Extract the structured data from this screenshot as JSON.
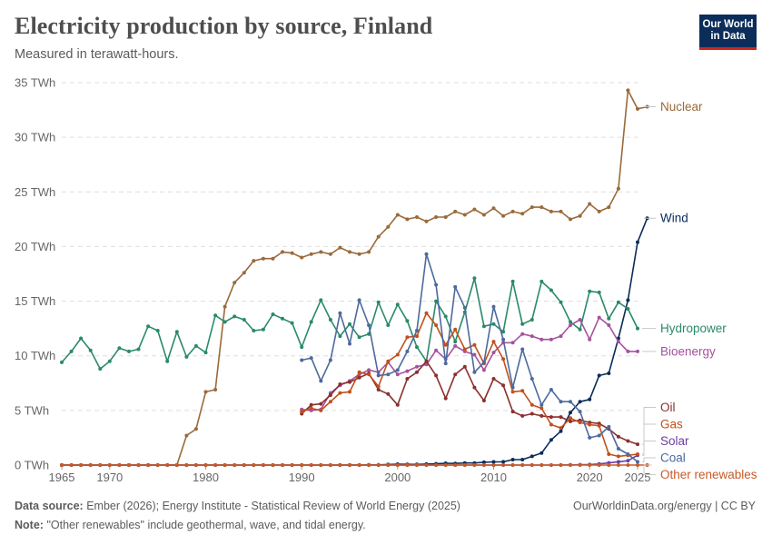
{
  "header": {
    "title": "Electricity production by source, Finland",
    "subtitle": "Measured in terawatt-hours.",
    "logo_line1": "Our World",
    "logo_line2": "in Data"
  },
  "footer": {
    "source_label": "Data source:",
    "source_text": "Ember (2026); Energy Institute - Statistical Review of World Energy (2025)",
    "url_text": "OurWorldinData.org/energy | CC BY",
    "note_label": "Note:",
    "note_text": "\"Other renewables\" include geothermal, wave, and tidal energy."
  },
  "chart_data": {
    "type": "line",
    "ylim": [
      0,
      35
    ],
    "xlim": [
      1965,
      2025
    ],
    "y_ticks": [
      0,
      5,
      10,
      15,
      20,
      25,
      30,
      35
    ],
    "y_tick_labels": [
      "0 TWh",
      "5 TWh",
      "10 TWh",
      "15 TWh",
      "20 TWh",
      "25 TWh",
      "30 TWh",
      "35 TWh"
    ],
    "x_ticks": [
      1965,
      1970,
      1980,
      1990,
      2000,
      2010,
      2020,
      2025
    ],
    "x_tick_labels": [
      "1965",
      "1970",
      "1980",
      "1990",
      "2000",
      "2010",
      "2020",
      "2025"
    ],
    "grid": "horizontal dashed",
    "legend": "right, labels at line ends",
    "series": [
      {
        "name": "Nuclear",
        "color": "#9a6a3a",
        "start": 1965,
        "values": [
          0,
          0,
          0,
          0,
          0,
          0,
          0,
          0,
          0,
          0,
          0,
          0,
          0,
          2.7,
          3.3,
          6.7,
          6.9,
          14.5,
          16.7,
          17.6,
          18.7,
          18.9,
          18.9,
          19.5,
          19.4,
          19.0,
          19.3,
          19.5,
          19.3,
          19.9,
          19.5,
          19.3,
          19.5,
          20.9,
          21.8,
          22.9,
          22.5,
          22.7,
          22.3,
          22.7,
          22.7,
          23.2,
          22.9,
          23.4,
          22.9,
          23.5,
          22.8,
          23.2,
          23.0,
          23.6,
          23.6,
          23.2,
          23.2,
          22.5,
          22.8,
          23.9,
          23.2,
          23.6,
          25.3,
          34.3,
          32.6,
          32.8
        ]
      },
      {
        "name": "Wind",
        "color": "#0b2c5a",
        "start": 1965,
        "values": [
          0,
          0,
          0,
          0,
          0,
          0,
          0,
          0,
          0,
          0,
          0,
          0,
          0,
          0,
          0,
          0,
          0,
          0,
          0,
          0,
          0,
          0,
          0,
          0,
          0,
          0,
          0,
          0,
          0,
          0.01,
          0.01,
          0.01,
          0.02,
          0.02,
          0.05,
          0.08,
          0.07,
          0.06,
          0.09,
          0.12,
          0.17,
          0.15,
          0.19,
          0.19,
          0.26,
          0.29,
          0.3,
          0.5,
          0.5,
          0.8,
          1.1,
          2.3,
          3.1,
          4.8,
          5.8,
          6.0,
          8.2,
          8.4,
          11.6,
          15.1,
          20.4,
          22.6
        ]
      },
      {
        "name": "Hydropower",
        "color": "#2a8a68",
        "start": 1965,
        "values": [
          9.4,
          10.4,
          11.6,
          10.5,
          8.8,
          9.5,
          10.7,
          10.4,
          10.6,
          12.7,
          12.3,
          9.5,
          12.2,
          9.9,
          10.9,
          10.3,
          13.7,
          13.1,
          13.6,
          13.3,
          12.3,
          12.4,
          13.8,
          13.4,
          13.0,
          10.8,
          13.1,
          15.1,
          13.3,
          11.8,
          12.9,
          11.7,
          12.0,
          14.9,
          12.8,
          14.7,
          13.2,
          10.8,
          9.5,
          15.0,
          13.6,
          11.3,
          14.0,
          17.1,
          12.7,
          12.9,
          12.2,
          16.8,
          12.9,
          13.3,
          16.8,
          16.0,
          14.9,
          13.1,
          12.4,
          15.9,
          15.8,
          13.4,
          14.9,
          14.3,
          12.5
        ]
      },
      {
        "name": "Bioenergy",
        "color": "#a6529e",
        "start": 1990,
        "values": [
          5.1,
          5.0,
          5.1,
          6.6,
          7.3,
          7.7,
          8.3,
          8.7,
          8.5,
          9.4,
          8.3,
          8.6,
          9.0,
          9.2,
          10.5,
          9.7,
          10.9,
          10.4,
          10.1,
          8.7,
          10.3,
          11.2,
          11.2,
          12.0,
          11.8,
          11.5,
          11.5,
          11.8,
          12.8,
          13.3,
          11.5,
          13.5,
          12.8,
          11.3,
          10.4,
          10.4
        ]
      },
      {
        "name": "Oil",
        "color": "#8b2f2f",
        "start": 1990,
        "values": [
          4.7,
          5.5,
          5.6,
          6.4,
          7.4,
          7.6,
          8.0,
          8.4,
          6.9,
          6.5,
          5.5,
          7.9,
          8.5,
          9.5,
          8.2,
          6.1,
          8.3,
          9.0,
          7.1,
          5.9,
          7.9,
          7.3,
          4.9,
          4.5,
          4.7,
          4.5,
          4.4,
          4.4,
          4.0,
          4.1,
          3.9,
          3.8,
          3.3,
          2.6,
          2.2,
          1.9
        ]
      },
      {
        "name": "Solar",
        "color": "#6b3fa0",
        "start": 1965,
        "values": [
          0,
          0,
          0,
          0,
          0,
          0,
          0,
          0,
          0,
          0,
          0,
          0,
          0,
          0,
          0,
          0,
          0,
          0,
          0,
          0,
          0,
          0,
          0,
          0,
          0,
          0,
          0,
          0,
          0,
          0,
          0,
          0,
          0,
          0,
          0,
          0,
          0,
          0,
          0,
          0,
          0,
          0,
          0,
          0,
          0,
          0,
          0,
          0,
          0,
          0,
          0,
          0,
          0.01,
          0.02,
          0.03,
          0.05,
          0.1,
          0.2,
          0.3,
          0.4,
          0.9
        ]
      },
      {
        "name": "Gas",
        "color": "#c0501e",
        "start": 1990,
        "values": [
          4.9,
          5.2,
          5.0,
          5.8,
          6.6,
          6.7,
          8.5,
          8.3,
          7.2,
          9.5,
          10.1,
          11.7,
          11.8,
          13.9,
          12.8,
          11.0,
          12.4,
          10.6,
          11.0,
          9.3,
          11.3,
          9.7,
          6.7,
          6.8,
          5.5,
          5.2,
          3.7,
          3.4,
          4.3,
          3.9,
          3.7,
          3.6,
          1.0,
          0.8,
          0.9,
          1.0
        ]
      },
      {
        "name": "Coal",
        "color": "#4c6a9c",
        "start": 1990,
        "values": [
          9.6,
          9.8,
          7.7,
          9.6,
          13.9,
          11.1,
          15.1,
          12.8,
          8.2,
          8.3,
          8.7,
          10.4,
          12.3,
          19.3,
          16.5,
          9.3,
          16.3,
          14.4,
          8.5,
          9.4,
          14.5,
          11.5,
          7.1,
          10.6,
          7.9,
          5.5,
          6.9,
          5.8,
          5.8,
          4.9,
          2.5,
          2.7,
          3.5,
          1.5,
          1.0,
          0.3
        ]
      },
      {
        "name": "Other renewables",
        "color": "#c75a28",
        "start": 1965,
        "values": [
          0,
          0,
          0,
          0,
          0,
          0,
          0,
          0,
          0,
          0,
          0,
          0,
          0,
          0,
          0,
          0,
          0,
          0,
          0,
          0,
          0,
          0,
          0,
          0,
          0,
          0,
          0,
          0,
          0,
          0,
          0,
          0,
          0,
          0,
          0,
          0,
          0,
          0,
          0,
          0,
          0,
          0,
          0,
          0,
          0,
          0,
          0,
          0,
          0,
          0,
          0,
          0,
          0,
          0,
          0,
          0,
          0,
          0,
          0,
          0,
          0,
          0
        ]
      }
    ]
  }
}
